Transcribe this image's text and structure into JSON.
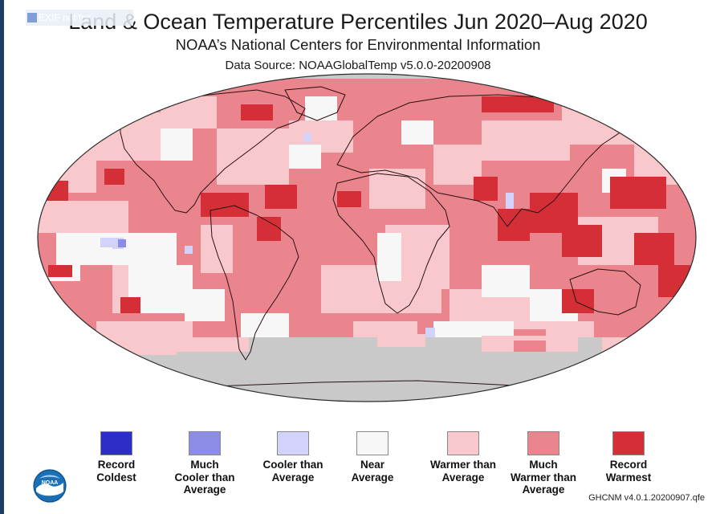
{
  "header": {
    "title": "Land & Ocean Temperature Percentiles Jun 2020–Aug 2020",
    "subtitle": "NOAA’s National Centers for Environmental Information",
    "source": "Data Source: NOAAGlobalTemp v5.0.0-20200908"
  },
  "watermark": "EXIF not for...",
  "colors": {
    "record_coldest": "#2d2dc8",
    "much_cooler": "#8c8ce6",
    "cooler": "#d2d2fa",
    "near": "#f7f7f7",
    "warmer": "#f8c8cc",
    "much_warmer": "#ea858e",
    "record_warmest": "#d42f36",
    "no_data": "#c9c9c9",
    "page_edge": "#1f3d63"
  },
  "legend": [
    {
      "label": "Record\nColdest",
      "color": "#2d2dc8"
    },
    {
      "label": "Much\nCooler than\nAverage",
      "color": "#8c8ce6"
    },
    {
      "label": "Cooler than\nAverage",
      "color": "#d2d2fa"
    },
    {
      "label": "Near\nAverage",
      "color": "#f7f7f7"
    },
    {
      "label": "Warmer than\nAverage",
      "color": "#f8c8cc"
    },
    {
      "label": "Much\nWarmer than\nAverage",
      "color": "#ea858e"
    },
    {
      "label": "Record\nWarmest",
      "color": "#d42f36"
    }
  ],
  "logo": {
    "icon": "noaa-logo",
    "text": "NOAA"
  },
  "footer_note": "GHCNM v4.0.1.20200907.qfe"
}
